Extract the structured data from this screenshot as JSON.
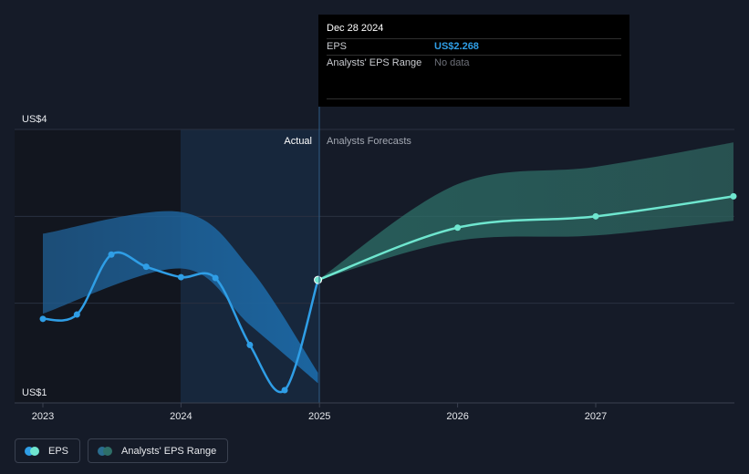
{
  "chart_data": {
    "type": "line",
    "y_axis": {
      "min_label": "US$1",
      "max_label": "US$4",
      "min": 1,
      "max": 4
    },
    "x_ticks": [
      "2023",
      "2024",
      "2025",
      "2026",
      "2027"
    ],
    "region_labels": {
      "actual": "Actual",
      "forecast": "Analysts Forecasts"
    },
    "series": [
      {
        "name": "EPS",
        "color": "#2f9ee6",
        "points": [
          [
            "2023-01-01",
            1.82
          ],
          [
            "2023-04-01",
            1.87
          ],
          [
            "2023-07-01",
            2.56
          ],
          [
            "2023-10-01",
            2.42
          ],
          [
            "2024-01-01",
            2.3
          ],
          [
            "2024-04-01",
            2.29
          ],
          [
            "2024-07-01",
            1.52
          ],
          [
            "2024-10-01",
            1.0
          ],
          [
            "2024-12-28",
            2.268
          ]
        ]
      },
      {
        "name": "EPS forecast",
        "color": "#6fe6cf",
        "points": [
          [
            "2024-12-28",
            2.268
          ],
          [
            "2026-01-01",
            2.87
          ],
          [
            "2027-01-01",
            3.0
          ],
          [
            "2027-12-31",
            3.23
          ]
        ]
      }
    ],
    "actual_range": {
      "upper": [
        [
          "2023-01-01",
          2.8
        ],
        [
          "2024-01-01",
          3.05
        ],
        [
          "2024-07-01",
          2.4
        ],
        [
          "2024-12-28",
          1.2
        ]
      ],
      "lower": [
        [
          "2023-01-01",
          1.88
        ],
        [
          "2024-01-01",
          2.4
        ],
        [
          "2024-07-01",
          1.75
        ],
        [
          "2024-12-28",
          1.08
        ]
      ]
    },
    "analysts_eps_range": {
      "color": "#2e6f68",
      "upper": [
        [
          "2024-12-28",
          2.268
        ],
        [
          "2026-01-01",
          3.37
        ],
        [
          "2027-01-01",
          3.57
        ],
        [
          "2027-12-31",
          3.85
        ]
      ],
      "lower": [
        [
          "2024-12-28",
          2.268
        ],
        [
          "2026-01-01",
          2.72
        ],
        [
          "2027-01-01",
          2.78
        ],
        [
          "2027-12-31",
          2.95
        ]
      ]
    },
    "gridlines": [
      2,
      3,
      4
    ]
  },
  "tooltip": {
    "date": "Dec 28 2024",
    "rows": [
      {
        "key": "EPS",
        "value": "US$2.268"
      },
      {
        "key": "Analysts' EPS Range",
        "value": "No data"
      }
    ]
  },
  "legend": [
    {
      "label": "EPS",
      "color_a": "#2f9ee6",
      "color_b": "#6fe6cf"
    },
    {
      "label": "Analysts' EPS Range",
      "color_a": "#2a6d8f",
      "color_b": "#2e6f68"
    }
  ]
}
